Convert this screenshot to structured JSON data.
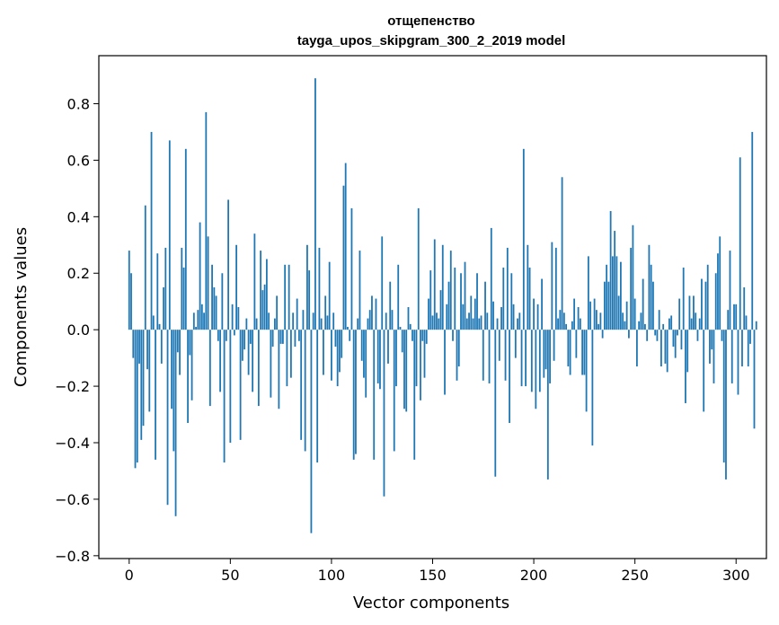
{
  "chart_data": {
    "type": "bar",
    "title": "отщепенство",
    "subtitle": "tayga_upos_skipgram_300_2_2019 model",
    "xlabel": "Vector components",
    "ylabel": "Components values",
    "xlim": [
      -15,
      315
    ],
    "ylim": [
      -0.81,
      0.97
    ],
    "xticks": [
      0,
      50,
      100,
      150,
      200,
      250,
      300
    ],
    "xtick_labels": [
      "0",
      "50",
      "100",
      "150",
      "200",
      "250",
      "300"
    ],
    "yticks": [
      -0.8,
      -0.6,
      -0.4,
      -0.2,
      0.0,
      0.2,
      0.4,
      0.6,
      0.8
    ],
    "ytick_labels": [
      "−0.8",
      "−0.6",
      "−0.4",
      "−0.2",
      "0.0",
      "0.2",
      "0.4",
      "0.6",
      "0.8"
    ],
    "grid": false,
    "bar_color": "#1f77b4",
    "values": [
      0.28,
      0.2,
      -0.1,
      -0.49,
      -0.47,
      -0.12,
      -0.39,
      -0.34,
      0.44,
      -0.14,
      -0.29,
      0.7,
      0.05,
      -0.46,
      0.27,
      0.02,
      -0.12,
      0.15,
      0.29,
      -0.62,
      0.67,
      -0.28,
      -0.43,
      -0.66,
      -0.08,
      -0.16,
      0.29,
      0.22,
      0.64,
      -0.33,
      -0.09,
      -0.25,
      0.06,
      0.01,
      0.07,
      0.38,
      0.09,
      0.06,
      0.77,
      0.33,
      -0.27,
      0.23,
      0.15,
      0.12,
      -0.04,
      -0.22,
      0.2,
      -0.47,
      -0.04,
      0.46,
      -0.4,
      0.09,
      -0.02,
      0.3,
      0.08,
      -0.39,
      -0.11,
      -0.07,
      0.04,
      -0.16,
      -0.05,
      -0.22,
      0.34,
      0.04,
      -0.27,
      0.28,
      0.14,
      0.16,
      0.25,
      0.06,
      -0.24,
      -0.06,
      0.04,
      0.12,
      -0.28,
      -0.05,
      -0.05,
      0.23,
      -0.2,
      0.23,
      -0.17,
      0.06,
      -0.06,
      0.11,
      -0.04,
      -0.39,
      0.07,
      -0.43,
      0.3,
      0.21,
      -0.72,
      0.06,
      0.89,
      -0.47,
      0.29,
      0.04,
      -0.16,
      0.12,
      0.05,
      0.24,
      -0.18,
      0.06,
      -0.06,
      -0.2,
      -0.15,
      -0.1,
      0.51,
      0.59,
      0.01,
      -0.04,
      0.43,
      -0.46,
      -0.44,
      0.04,
      0.28,
      -0.11,
      -0.17,
      -0.24,
      0.04,
      0.07,
      0.12,
      -0.46,
      0.11,
      -0.19,
      -0.21,
      0.33,
      -0.59,
      0.06,
      -0.12,
      0.17,
      0.07,
      -0.43,
      -0.2,
      0.23,
      0.01,
      -0.08,
      -0.28,
      -0.29,
      0.08,
      0.02,
      -0.04,
      -0.46,
      -0.2,
      0.43,
      -0.25,
      -0.04,
      -0.17,
      -0.05,
      0.11,
      0.21,
      0.05,
      0.32,
      0.06,
      0.04,
      0.14,
      0.3,
      -0.23,
      0.09,
      0.17,
      0.28,
      -0.04,
      0.22,
      -0.18,
      -0.13,
      0.2,
      0.09,
      0.24,
      0.04,
      0.06,
      0.12,
      0.04,
      0.11,
      0.2,
      0.04,
      0.05,
      -0.18,
      0.17,
      0.06,
      -0.19,
      0.36,
      0.1,
      -0.52,
      0.04,
      -0.11,
      0.08,
      0.22,
      -0.18,
      0.29,
      -0.33,
      0.2,
      0.09,
      -0.1,
      0.04,
      0.06,
      -0.2,
      0.64,
      -0.2,
      0.3,
      0.22,
      -0.22,
      0.11,
      -0.28,
      0.09,
      -0.22,
      0.18,
      -0.17,
      -0.14,
      -0.53,
      -0.19,
      0.31,
      -0.11,
      0.29,
      0.04,
      0.07,
      0.54,
      0.06,
      0.02,
      -0.13,
      -0.16,
      0.03,
      0.11,
      -0.1,
      0.08,
      0.04,
      -0.16,
      -0.16,
      -0.29,
      0.26,
      0.1,
      -0.41,
      0.11,
      0.07,
      0.02,
      0.06,
      -0.03,
      0.17,
      0.23,
      0.17,
      0.42,
      0.26,
      0.35,
      0.26,
      0.12,
      0.24,
      0.06,
      0.03,
      0.1,
      -0.03,
      0.29,
      0.37,
      0.11,
      -0.13,
      0.03,
      0.06,
      0.18,
      0.02,
      -0.04,
      0.3,
      0.23,
      0.17,
      -0.02,
      -0.04,
      0.07,
      -0.13,
      0.02,
      -0.12,
      -0.15,
      0.04,
      0.05,
      -0.06,
      -0.1,
      -0.02,
      0.11,
      -0.07,
      0.22,
      -0.26,
      -0.15,
      0.12,
      0.04,
      0.12,
      0.06,
      -0.04,
      0.04,
      0.18,
      -0.29,
      0.17,
      0.23,
      -0.12,
      -0.07,
      -0.19,
      0.2,
      0.27,
      0.33,
      -0.04,
      -0.47,
      -0.53,
      0.07,
      0.28,
      -0.19,
      0.09,
      0.09,
      -0.23,
      0.61,
      -0.13,
      0.15,
      0.05,
      -0.13,
      -0.05,
      0.7,
      -0.35,
      0.03
    ],
    "values_note_removed": true
  }
}
